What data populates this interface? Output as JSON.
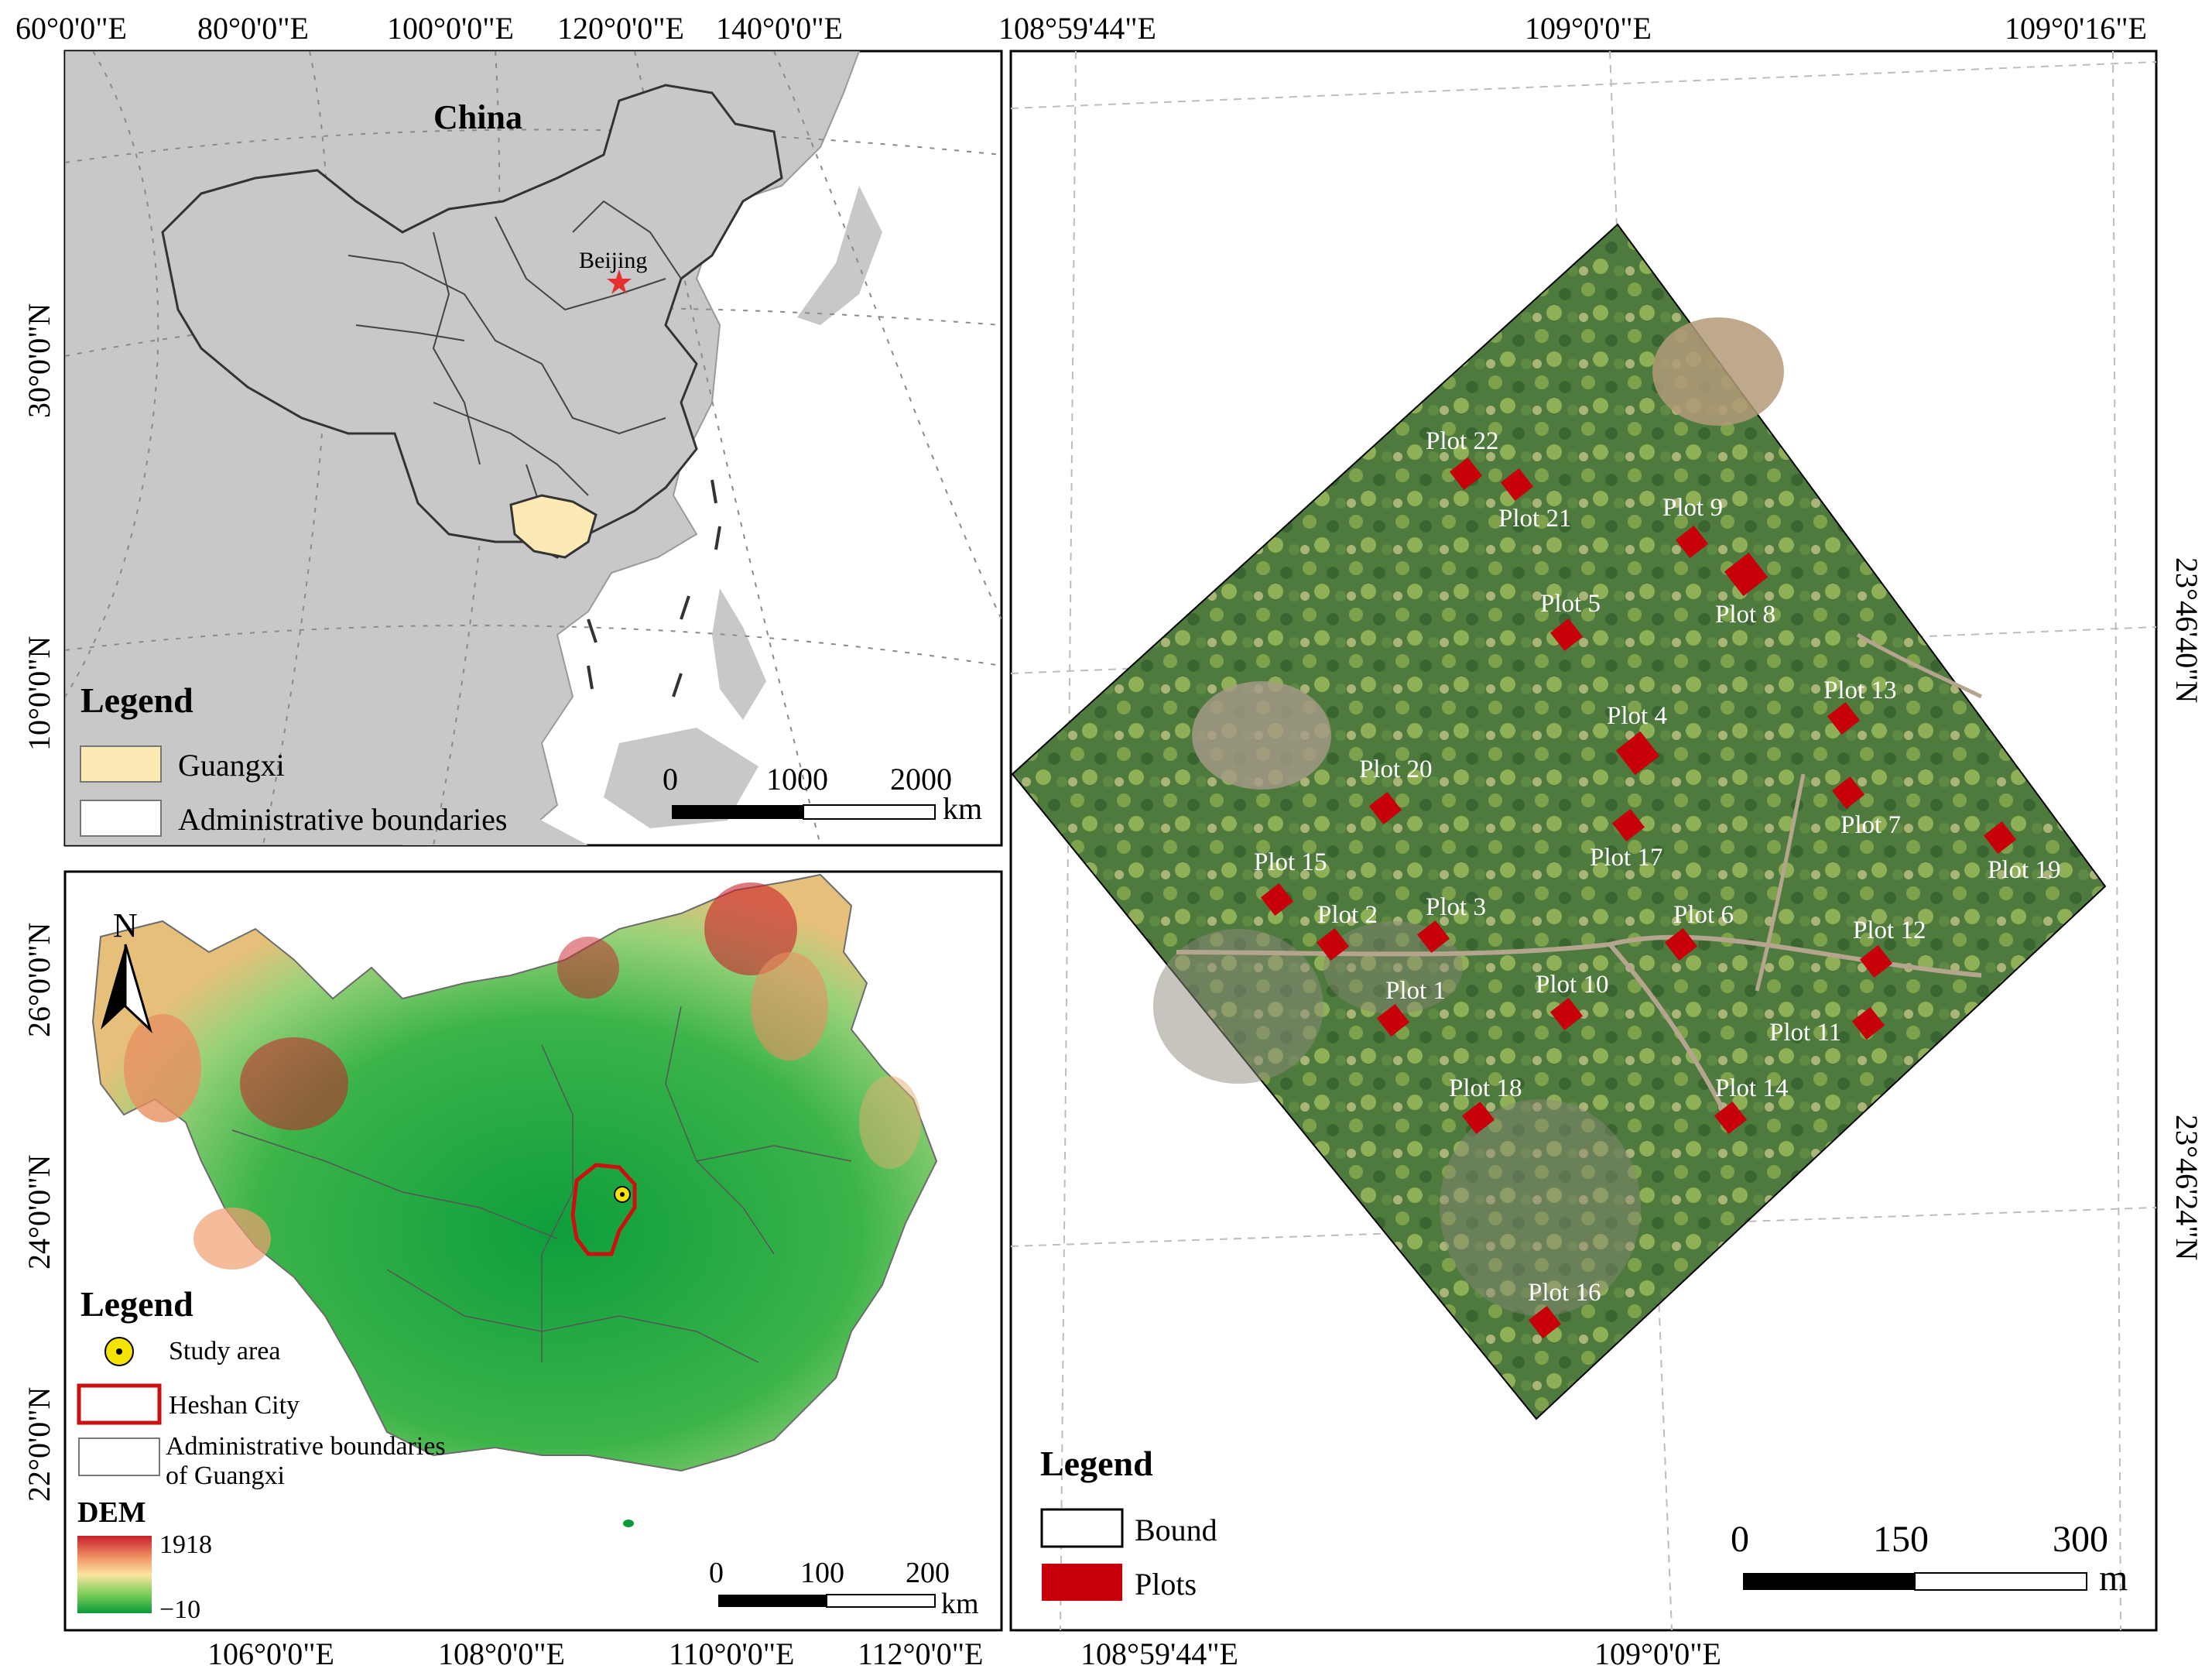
{
  "panel_a": {
    "top_ticks": [
      "60°0'0\"E",
      "80°0'0\"E",
      "100°0'0\"E",
      "120°0'0\"E",
      "140°0'0\"E"
    ],
    "left_ticks": [
      "30°0'0\"N",
      "10°0'0\"N"
    ],
    "country_label": "China",
    "capital_label": "Beijing",
    "legend_title": "Legend",
    "legend_items": [
      "Guangxi",
      "Administrative boundaries"
    ],
    "scalebar": {
      "ticks": [
        "0",
        "1000",
        "2000"
      ],
      "unit": "km"
    },
    "colors": {
      "land": "#c8c8c8",
      "guangxi": "#fde9b4",
      "capital": "#e53030"
    }
  },
  "panel_b": {
    "left_ticks": [
      "26°0'0\"N",
      "24°0'0\"N",
      "22°0'0\"N"
    ],
    "bottom_ticks": [
      "106°0'0\"E",
      "108°0'0\"E",
      "110°0'0\"E",
      "112°0'0\"E"
    ],
    "north_arrow": "N",
    "legend_title": "Legend",
    "legend_items": [
      "Study area",
      "Heshan City",
      "Administrative boundaries of Guangxi"
    ],
    "dem_title": "DEM",
    "dem_max": "1918",
    "dem_min": "−10",
    "scalebar": {
      "ticks": [
        "0",
        "100",
        "200"
      ],
      "unit": "km"
    },
    "colors": {
      "dem_low": "#0a9a3a",
      "dem_mid": "#fbe3a0",
      "dem_high": "#c8202a",
      "heshan": "#cc1010",
      "study": "#f5e400"
    }
  },
  "panel_c": {
    "top_ticks": [
      "108°59'44\"E",
      "109°0'0\"E",
      "109°0'16\"E"
    ],
    "bottom_ticks": [
      "108°59'44\"E",
      "109°0'0\"E"
    ],
    "right_ticks": [
      "23°46'40\"N",
      "23°46'24\"N"
    ],
    "plots": [
      "Plot 1",
      "Plot 2",
      "Plot 3",
      "Plot 4",
      "Plot 5",
      "Plot 6",
      "Plot 7",
      "Plot 8",
      "Plot 9",
      "Plot 10",
      "Plot 11",
      "Plot 12",
      "Plot 13",
      "Plot 14",
      "Plot 15",
      "Plot 16",
      "Plot 17",
      "Plot 18",
      "Plot 19",
      "Plot 20",
      "Plot 21",
      "Plot 22"
    ],
    "legend_title": "Legend",
    "legend_items": [
      "Bound",
      "Plots"
    ],
    "scalebar": {
      "ticks": [
        "0",
        "150",
        "300"
      ],
      "unit": "m"
    },
    "colors": {
      "plot": "#c8000a",
      "imagery": "#3f6b3a"
    }
  }
}
